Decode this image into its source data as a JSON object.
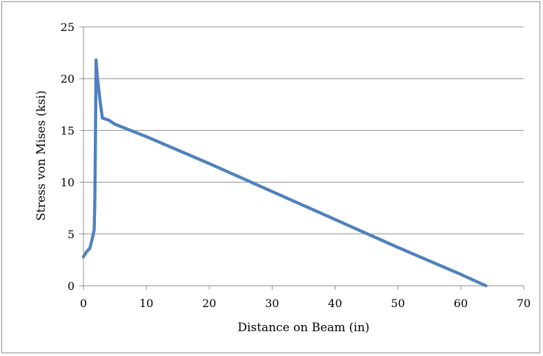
{
  "chart_data": {
    "type": "line",
    "title": "",
    "xlabel": "Distance on Beam (in)",
    "ylabel": "Stress von Mises (ksi)",
    "xlim": [
      0,
      70
    ],
    "ylim": [
      0,
      25
    ],
    "x_ticks": [
      "0",
      "10",
      "20",
      "30",
      "40",
      "50",
      "60",
      "70"
    ],
    "y_ticks": [
      "0",
      "5",
      "10",
      "15",
      "20",
      "25"
    ],
    "grid": "horizontal",
    "legend": "none",
    "series": [
      {
        "color": "#4f81bd",
        "x": [
          0,
          0.5,
          1.0,
          1.5,
          1.7,
          1.8,
          1.9,
          2.0,
          2.2,
          2.6,
          3.0,
          4.0,
          5.0,
          10,
          20,
          30,
          40,
          50,
          60,
          64
        ],
        "y": [
          2.8,
          3.3,
          3.6,
          4.8,
          5.4,
          8.0,
          14.0,
          21.8,
          20.2,
          18.0,
          16.2,
          16.0,
          15.6,
          14.4,
          11.8,
          9.1,
          6.4,
          3.7,
          1.1,
          0.0
        ]
      }
    ]
  }
}
